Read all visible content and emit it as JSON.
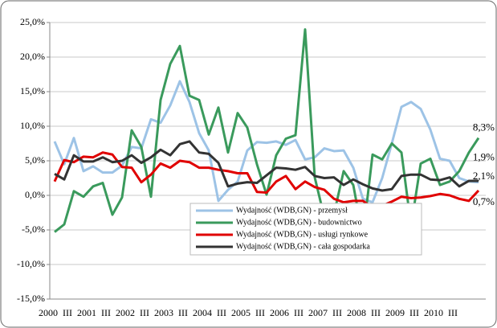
{
  "chart_data": {
    "type": "line",
    "categories": [
      "2000",
      null,
      "III",
      null,
      "2001",
      null,
      "III",
      null,
      "2002",
      null,
      "III",
      null,
      "2003",
      null,
      "III",
      null,
      "2004",
      null,
      "III",
      null,
      "2005",
      null,
      "III",
      null,
      "2006",
      null,
      "III",
      null,
      "2007",
      null,
      "III",
      null,
      "2008",
      null,
      "III",
      null,
      "2009",
      null,
      "III",
      null,
      "2010",
      null,
      "III",
      null,
      null
    ],
    "ylim": [
      -15,
      25
    ],
    "yticks": [
      {
        "value": -15,
        "label": "-15,0%"
      },
      {
        "value": -10,
        "label": "-10,0%"
      },
      {
        "value": -5,
        "label": "-5,0%"
      },
      {
        "value": 0,
        "label": "0,0%"
      },
      {
        "value": 5,
        "label": "5,0%"
      },
      {
        "value": 10,
        "label": "10,0%"
      },
      {
        "value": 15,
        "label": "15,0%"
      },
      {
        "value": 20,
        "label": "20,0%"
      },
      {
        "value": 25,
        "label": "25,0%"
      }
    ],
    "grid": true,
    "series": [
      {
        "name": "Wydajność (WDB,GN) - przemysł",
        "color": "#9dc3e6",
        "values": [
          7.8,
          4.5,
          8.3,
          3.5,
          4.2,
          3.3,
          3.3,
          4.3,
          7.0,
          6.8,
          11.0,
          10.5,
          13.0,
          16.5,
          13.5,
          9.0,
          6.5,
          -0.8,
          0.8,
          2.0,
          6.5,
          7.7,
          7.6,
          7.8,
          7.3,
          8.0,
          5.2,
          5.5,
          6.8,
          6.4,
          6.5,
          4.0,
          -0.5,
          -1.0,
          2.5,
          7.5,
          12.8,
          13.5,
          12.5,
          9.5,
          5.3,
          5.0,
          2.5,
          2.0,
          1.9
        ],
        "value_labels": [
          null,
          null,
          null,
          null,
          null,
          null,
          null,
          null,
          null,
          null,
          null,
          null,
          null,
          null,
          null,
          null,
          null,
          null,
          null,
          null,
          null,
          null,
          null,
          null,
          null,
          null,
          null,
          null,
          null,
          null,
          null,
          null,
          null,
          null,
          null,
          null,
          null,
          null,
          null,
          null,
          null,
          null,
          null,
          null,
          "1,9%"
        ]
      },
      {
        "name": "Wydajność (WDB,GN) - budownictwo",
        "color": "#3a9a5c",
        "values": [
          -5.3,
          -4.2,
          0.6,
          -0.2,
          1.3,
          1.8,
          -2.8,
          -0.3,
          9.4,
          7.0,
          -0.2,
          13.8,
          19.0,
          21.6,
          14.4,
          13.8,
          8.8,
          12.7,
          6.2,
          11.9,
          9.8,
          4.5,
          0.1,
          5.8,
          8.2,
          8.7,
          24.0,
          2.6,
          -3.2,
          -2.7,
          3.5,
          1.5,
          -6.0,
          5.9,
          5.2,
          7.5,
          6.2,
          -4.4,
          4.6,
          5.3,
          1.5,
          2.0,
          3.5,
          6.2,
          8.3
        ],
        "value_labels": [
          null,
          null,
          null,
          null,
          null,
          null,
          null,
          null,
          null,
          null,
          null,
          null,
          null,
          null,
          null,
          null,
          null,
          null,
          null,
          null,
          null,
          null,
          null,
          null,
          null,
          null,
          null,
          null,
          null,
          null,
          null,
          null,
          null,
          null,
          null,
          null,
          null,
          null,
          null,
          null,
          null,
          null,
          null,
          null,
          "8,3%"
        ]
      },
      {
        "name": "Wydajność (WDB,GN) - usługi rynkowe",
        "color": "#e00000",
        "values": [
          2.0,
          5.1,
          4.8,
          5.6,
          5.5,
          6.2,
          5.9,
          4.1,
          4.0,
          1.9,
          3.0,
          4.6,
          4.0,
          5.0,
          4.8,
          4.0,
          4.0,
          3.7,
          3.5,
          3.2,
          3.2,
          0.5,
          0.4,
          2.0,
          2.8,
          0.9,
          2.0,
          1.2,
          0.8,
          -0.5,
          -1.0,
          -0.8,
          -0.8,
          -1.8,
          -1.5,
          -0.9,
          -0.2,
          -0.4,
          -0.3,
          -0.1,
          0.2,
          0.0,
          -0.5,
          -0.8,
          0.7
        ],
        "value_labels": [
          null,
          null,
          null,
          null,
          null,
          null,
          null,
          null,
          null,
          null,
          null,
          null,
          null,
          null,
          null,
          null,
          null,
          null,
          null,
          null,
          null,
          null,
          null,
          null,
          null,
          null,
          null,
          null,
          null,
          null,
          null,
          null,
          null,
          null,
          null,
          null,
          null,
          null,
          null,
          null,
          null,
          null,
          null,
          null,
          "0,7%"
        ]
      },
      {
        "name": "Wydajność (WDB,GN) - cała gospodarka",
        "color": "#333333",
        "values": [
          3.1,
          2.3,
          5.8,
          4.9,
          4.9,
          5.5,
          4.8,
          5.0,
          5.8,
          4.7,
          5.5,
          6.6,
          5.8,
          7.4,
          7.8,
          6.2,
          6.0,
          4.7,
          1.3,
          1.7,
          1.9,
          1.8,
          2.9,
          4.0,
          3.9,
          3.7,
          4.1,
          2.8,
          2.5,
          2.6,
          1.5,
          2.3,
          1.6,
          1.0,
          0.7,
          0.9,
          2.8,
          3.0,
          3.0,
          2.3,
          2.2,
          2.6,
          1.3,
          2.1,
          2.1
        ],
        "value_labels": [
          null,
          null,
          null,
          null,
          null,
          null,
          null,
          null,
          null,
          null,
          null,
          null,
          null,
          null,
          null,
          null,
          null,
          null,
          null,
          null,
          null,
          null,
          null,
          null,
          null,
          null,
          null,
          null,
          null,
          null,
          null,
          null,
          null,
          null,
          null,
          null,
          null,
          null,
          null,
          null,
          null,
          null,
          null,
          null,
          "2,1%"
        ]
      }
    ]
  }
}
